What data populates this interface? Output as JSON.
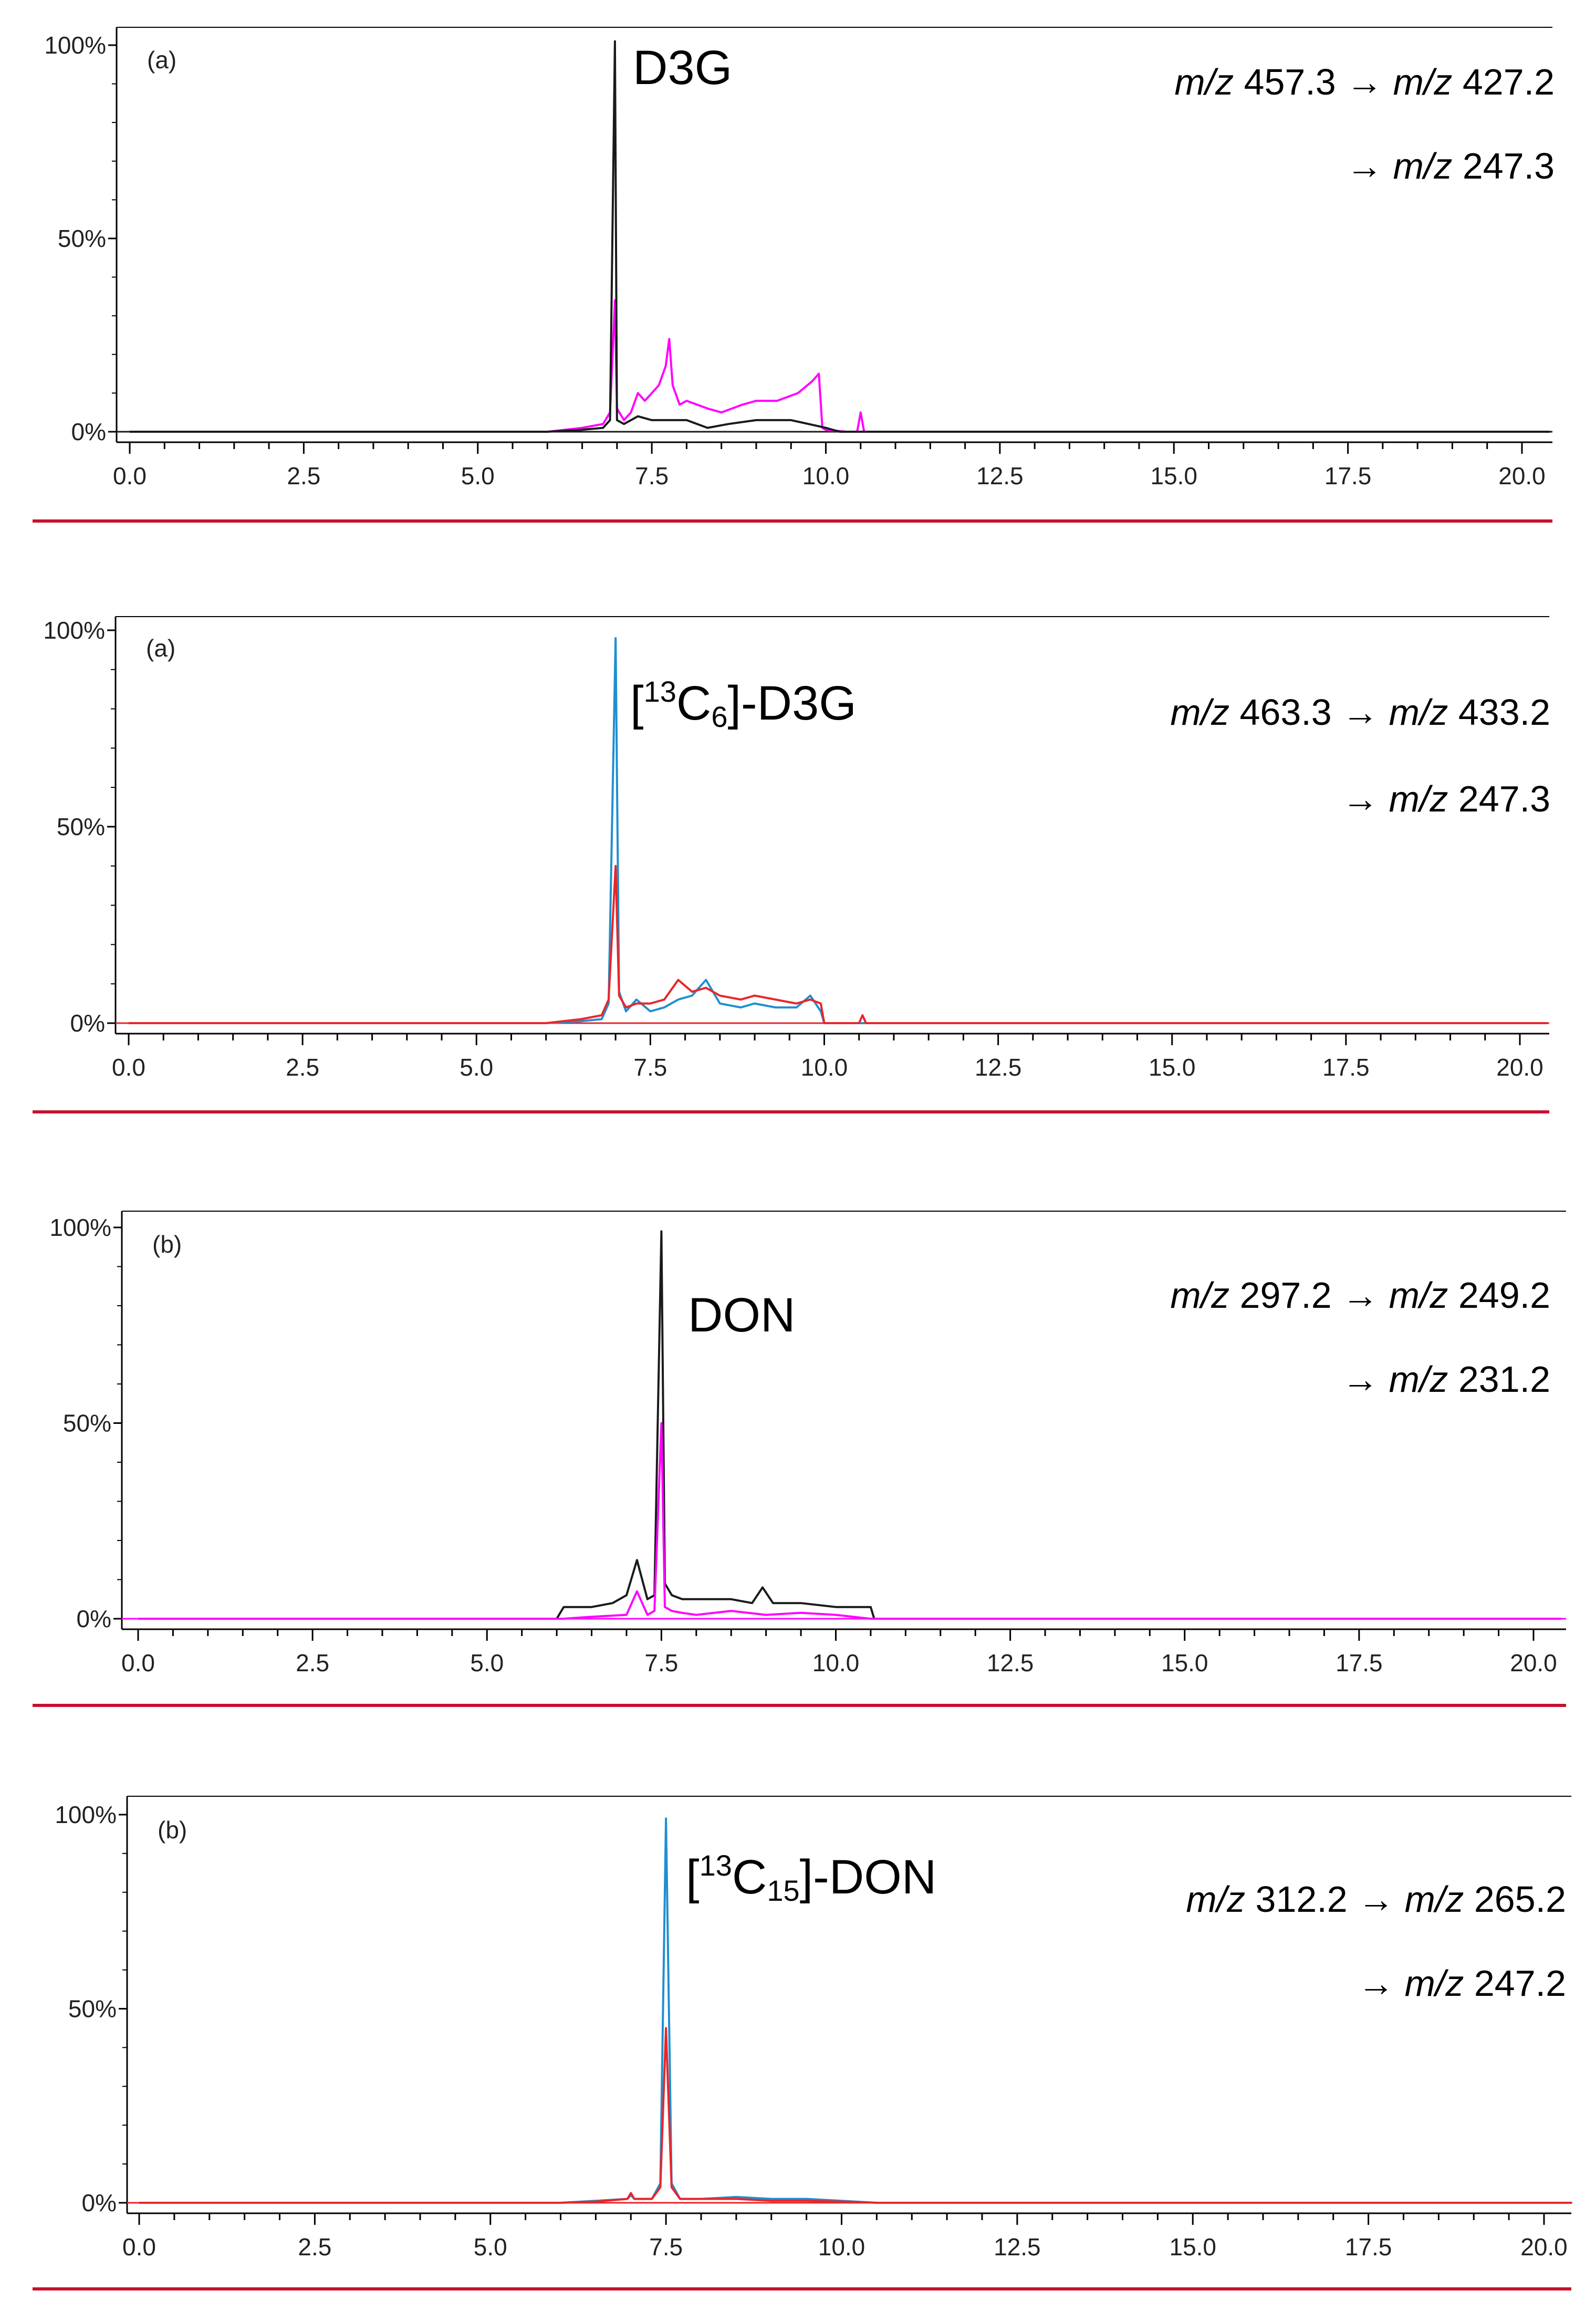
{
  "figure": {
    "colors": {
      "frame": "#000000",
      "divider": "#c8102e",
      "black_trace": "#1a1a1a",
      "magenta_trace": "#ff00ff",
      "blue_trace": "#1f8fd0",
      "red_trace": "#e8262a"
    }
  },
  "chart_data": [
    {
      "type": "line",
      "panel_tag": "(a)",
      "compound_label": "D3G",
      "transition_line1": "457.3 → ",
      "transition_line1_b": "427.2",
      "transition_line2": "247.3",
      "mz_prefix": "m/z",
      "arrow": "→",
      "xlim": [
        0,
        20.4
      ],
      "ylim": [
        0,
        100
      ],
      "xticks": [
        "0.0",
        "2.5",
        "5.0",
        "7.5",
        "10.0",
        "12.5",
        "15.0",
        "17.5",
        "20.0"
      ],
      "xtick_values": [
        0,
        2.5,
        5,
        7.5,
        10,
        12.5,
        15,
        17.5,
        20
      ],
      "yticks": [
        "0%",
        "50%",
        "100%"
      ],
      "ytick_values": [
        0,
        50,
        100
      ],
      "series": [
        {
          "color": "magenta_trace",
          "x": [
            0,
            6.0,
            6.5,
            6.8,
            6.9,
            6.97,
            7.0,
            7.1,
            7.2,
            7.3,
            7.4,
            7.5,
            7.6,
            7.7,
            7.75,
            7.8,
            7.9,
            8.0,
            8.3,
            8.5,
            8.8,
            9.0,
            9.3,
            9.6,
            9.8,
            9.9,
            9.95,
            10.0,
            10.3,
            10.45,
            10.5,
            10.55,
            20.4
          ],
          "y": [
            0,
            0,
            1,
            2,
            5,
            34,
            6,
            3,
            5,
            10,
            8,
            10,
            12,
            17,
            24,
            12,
            7,
            8,
            6,
            5,
            7,
            8,
            8,
            10,
            13,
            15,
            1,
            0.5,
            0,
            0,
            5,
            0,
            0
          ]
        },
        {
          "color": "black_trace",
          "x": [
            0,
            6.0,
            6.5,
            6.8,
            6.9,
            6.97,
            7.0,
            7.1,
            7.3,
            7.5,
            7.8,
            8.0,
            8.3,
            8.6,
            9.0,
            9.5,
            10.0,
            10.2,
            20.4
          ],
          "y": [
            0,
            0,
            0.5,
            1,
            3,
            101,
            3,
            2,
            4,
            3,
            3,
            3,
            1,
            2,
            3,
            3,
            1,
            0,
            0
          ]
        }
      ]
    },
    {
      "type": "line",
      "panel_tag": "(a)",
      "compound_label": "D3G",
      "isotope_prefix": "[",
      "isotope_mass": "13",
      "isotope_element": "C",
      "isotope_count": "6",
      "isotope_suffix": "]-",
      "transition_line1": "463.3 → ",
      "transition_line1_b": "433.2",
      "transition_line2": "247.3",
      "mz_prefix": "m/z",
      "arrow": "→",
      "xlim": [
        0,
        20.4
      ],
      "ylim": [
        0,
        100
      ],
      "xticks": [
        "0.0",
        "2.5",
        "5.0",
        "7.5",
        "10.0",
        "12.5",
        "15.0",
        "17.5",
        "20.0"
      ],
      "xtick_values": [
        0,
        2.5,
        5,
        7.5,
        10,
        12.5,
        15,
        17.5,
        20
      ],
      "yticks": [
        "0%",
        "50%",
        "100%"
      ],
      "ytick_values": [
        0,
        50,
        100
      ],
      "series": [
        {
          "color": "blue_trace",
          "x": [
            0,
            6.0,
            6.5,
            6.8,
            6.9,
            7.0,
            7.05,
            7.15,
            7.3,
            7.5,
            7.7,
            7.9,
            8.1,
            8.3,
            8.5,
            8.8,
            9.0,
            9.3,
            9.6,
            9.8,
            9.95,
            10.0,
            20.4
          ],
          "y": [
            0,
            0,
            0.5,
            1,
            5,
            98,
            8,
            3,
            6,
            3,
            4,
            6,
            7,
            11,
            5,
            4,
            5,
            4,
            4,
            7,
            3,
            0,
            0
          ]
        },
        {
          "color": "red_trace",
          "x": [
            0,
            6.0,
            6.5,
            6.8,
            6.9,
            7.0,
            7.05,
            7.15,
            7.3,
            7.5,
            7.7,
            7.9,
            8.1,
            8.3,
            8.5,
            8.8,
            9.0,
            9.3,
            9.6,
            9.8,
            9.95,
            10.0,
            10.5,
            10.55,
            10.6,
            20.4
          ],
          "y": [
            0,
            0,
            1,
            2,
            6,
            40,
            7,
            4,
            5,
            5,
            6,
            11,
            8,
            9,
            7,
            6,
            7,
            6,
            5,
            6,
            5,
            0,
            0,
            2,
            0,
            0
          ]
        }
      ]
    },
    {
      "type": "line",
      "panel_tag": "(b)",
      "compound_label": "DON",
      "transition_line1": "297.2 → ",
      "transition_line1_b": "249.2",
      "transition_line2": "231.2",
      "mz_prefix": "m/z",
      "arrow": "→",
      "xlim": [
        0,
        20.4
      ],
      "ylim": [
        0,
        100
      ],
      "xticks": [
        "0.0",
        "2.5",
        "5.0",
        "7.5",
        "10.0",
        "12.5",
        "15.0",
        "17.5",
        "20.0"
      ],
      "xtick_values": [
        0,
        2.5,
        5,
        7.5,
        10,
        12.5,
        15,
        17.5,
        20
      ],
      "yticks": [
        "0%",
        "50%",
        "100%"
      ],
      "ytick_values": [
        0,
        50,
        100
      ],
      "series": [
        {
          "color": "black_trace",
          "x": [
            0,
            6.0,
            6.1,
            6.5,
            6.8,
            7.0,
            7.15,
            7.3,
            7.4,
            7.5,
            7.55,
            7.65,
            7.8,
            8.0,
            8.5,
            8.8,
            8.95,
            9.1,
            9.5,
            10.0,
            10.3,
            10.5,
            10.55,
            20.4
          ],
          "y": [
            0,
            0,
            3,
            3,
            4,
            6,
            15,
            5,
            6,
            99,
            9,
            6,
            5,
            5,
            5,
            4,
            8,
            4,
            4,
            3,
            3,
            3,
            0,
            0
          ]
        },
        {
          "color": "magenta_trace",
          "x": [
            0,
            6.1,
            6.5,
            7.0,
            7.15,
            7.3,
            7.4,
            7.5,
            7.55,
            7.65,
            7.8,
            8.0,
            8.5,
            9.0,
            9.5,
            10.0,
            10.5,
            20.4
          ],
          "y": [
            0,
            0,
            0.5,
            1,
            7,
            1,
            2,
            50,
            3,
            2,
            1.5,
            1,
            2,
            1,
            1.5,
            1,
            0,
            0
          ]
        }
      ]
    },
    {
      "type": "line",
      "panel_tag": "(b)",
      "compound_label": "DON",
      "isotope_prefix": "[",
      "isotope_mass": "13",
      "isotope_element": "C",
      "isotope_count": "15",
      "isotope_suffix": "]-",
      "transition_line1": "312.2 → ",
      "transition_line1_b": "265.2",
      "transition_line2": "247.2",
      "mz_prefix": "m/z",
      "arrow": "→",
      "xlim": [
        0,
        20.4
      ],
      "ylim": [
        0,
        100
      ],
      "xticks": [
        "0.0",
        "2.5",
        "5.0",
        "7.5",
        "10.0",
        "12.5",
        "15.0",
        "17.5",
        "20.0"
      ],
      "xtick_values": [
        0,
        2.5,
        5,
        7.5,
        10,
        12.5,
        15,
        17.5,
        20
      ],
      "yticks": [
        "0%",
        "50%",
        "100%"
      ],
      "ytick_values": [
        0,
        50,
        100
      ],
      "series": [
        {
          "color": "blue_trace",
          "x": [
            0,
            6.0,
            6.5,
            6.95,
            7.0,
            7.05,
            7.3,
            7.42,
            7.5,
            7.58,
            7.7,
            8.0,
            8.5,
            9.0,
            9.5,
            10.0,
            10.5,
            20.4
          ],
          "y": [
            0,
            0,
            0.5,
            1,
            2,
            1,
            1,
            5,
            99,
            5,
            1,
            1,
            1.5,
            1,
            1,
            0.5,
            0,
            0
          ]
        },
        {
          "color": "red_trace",
          "x": [
            0,
            6.0,
            6.5,
            6.95,
            7.0,
            7.05,
            7.3,
            7.42,
            7.5,
            7.58,
            7.7,
            8.0,
            8.5,
            9.0,
            9.5,
            10.0,
            10.5,
            20.4
          ],
          "y": [
            0,
            0,
            0.3,
            1,
            2.5,
            1,
            1,
            4,
            45,
            4,
            1,
            1,
            1,
            0.5,
            0.5,
            0.3,
            0,
            0
          ]
        }
      ]
    }
  ]
}
